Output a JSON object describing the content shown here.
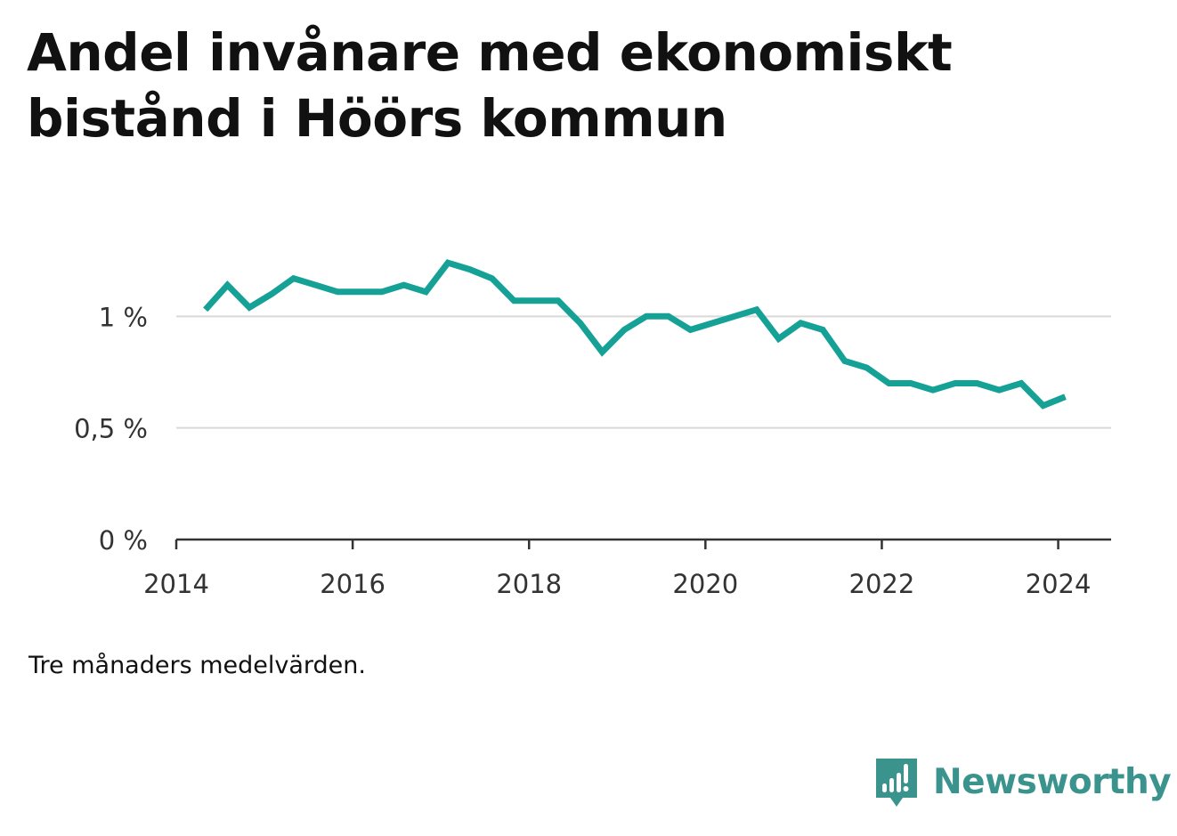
{
  "colors": {
    "line": "#15a196",
    "grid": "#d9d9d9",
    "axis": "#333333",
    "brand": "#3a948d"
  },
  "chart_data": {
    "type": "line",
    "title": "Andel invånare med ekonomiskt bistånd i Höörs kommun",
    "xlabel": "",
    "ylabel": "",
    "xlim": [
      2014,
      2024.6
    ],
    "ylim": [
      0,
      1.5
    ],
    "x_ticks": [
      {
        "value": 2014,
        "label": "2014"
      },
      {
        "value": 2016,
        "label": "2016"
      },
      {
        "value": 2018,
        "label": "2018"
      },
      {
        "value": 2020,
        "label": "2020"
      },
      {
        "value": 2022,
        "label": "2022"
      },
      {
        "value": 2024,
        "label": "2024"
      }
    ],
    "y_ticks": [
      {
        "value": 0,
        "label": "0 %"
      },
      {
        "value": 0.5,
        "label": "0,5 %"
      },
      {
        "value": 1,
        "label": "1 %"
      }
    ],
    "grid": true,
    "series": [
      {
        "x": [
          2014.33,
          2014.58,
          2014.83,
          2015.08,
          2015.33,
          2015.58,
          2015.83,
          2016.08,
          2016.33,
          2016.58,
          2016.83,
          2017.08,
          2017.33,
          2017.58,
          2017.83,
          2018.08,
          2018.33,
          2018.58,
          2018.83,
          2019.08,
          2019.33,
          2019.58,
          2019.83,
          2020.08,
          2020.33,
          2020.58,
          2020.83,
          2021.08,
          2021.33,
          2021.58,
          2021.83,
          2022.08,
          2022.33,
          2022.58,
          2022.83,
          2023.08,
          2023.33,
          2023.58,
          2023.83,
          2024.08
        ],
        "values": [
          1.03,
          1.14,
          1.04,
          1.1,
          1.17,
          1.14,
          1.11,
          1.11,
          1.11,
          1.14,
          1.11,
          1.24,
          1.21,
          1.17,
          1.07,
          1.07,
          1.07,
          0.97,
          0.84,
          0.94,
          1.0,
          1.0,
          0.94,
          0.97,
          1.0,
          1.03,
          0.9,
          0.97,
          0.94,
          0.8,
          0.77,
          0.7,
          0.7,
          0.67,
          0.7,
          0.7,
          0.67,
          0.7,
          0.6,
          0.64
        ]
      }
    ]
  },
  "note": "Tre månaders medelvärden.",
  "brand": {
    "name": "Newsworthy",
    "icon": "newsworthy-logo-icon"
  }
}
